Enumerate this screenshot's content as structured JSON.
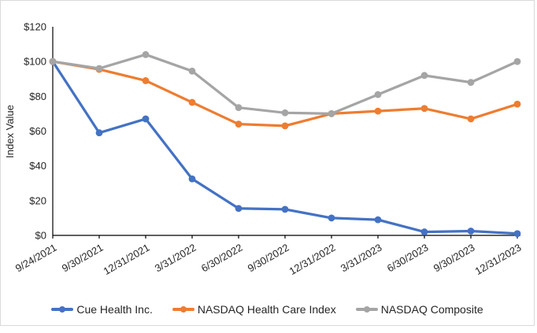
{
  "chart_data": {
    "type": "line",
    "title": "",
    "xlabel": "",
    "ylabel": "Index Value",
    "ylim": [
      0,
      120
    ],
    "grid": false,
    "marker": "circle",
    "legend_position": "bottom",
    "y_ticks": [
      {
        "value": 0,
        "label": "$0"
      },
      {
        "value": 20,
        "label": "$20"
      },
      {
        "value": 40,
        "label": "$40"
      },
      {
        "value": 60,
        "label": "$60"
      },
      {
        "value": 80,
        "label": "$80"
      },
      {
        "value": 100,
        "label": "$100"
      },
      {
        "value": 120,
        "label": "$120"
      }
    ],
    "categories": [
      "9/24/2021",
      "9/30/2021",
      "12/31/2021",
      "3/31/2022",
      "6/30/2022",
      "9/30/2022",
      "12/31/2022",
      "3/31/2023",
      "6/30/2023",
      "9/30/2023",
      "12/31/2023"
    ],
    "series": [
      {
        "name": "Cue Health Inc.",
        "color": "#4472C4",
        "values": [
          100,
          59,
          67,
          32.5,
          15.5,
          15,
          10,
          9,
          2,
          2.5,
          1
        ]
      },
      {
        "name": "NASDAQ Health Care Index",
        "color": "#ED7D31",
        "values": [
          100,
          95.5,
          89,
          76.5,
          64,
          63,
          70,
          71.5,
          73,
          67,
          75.5
        ]
      },
      {
        "name": "NASDAQ Composite",
        "color": "#A5A5A5",
        "values": [
          100,
          96,
          104,
          94.5,
          73.5,
          70.5,
          70,
          81,
          92,
          88,
          100
        ]
      }
    ],
    "axis_color": "#000000",
    "text_color": "#262626"
  }
}
